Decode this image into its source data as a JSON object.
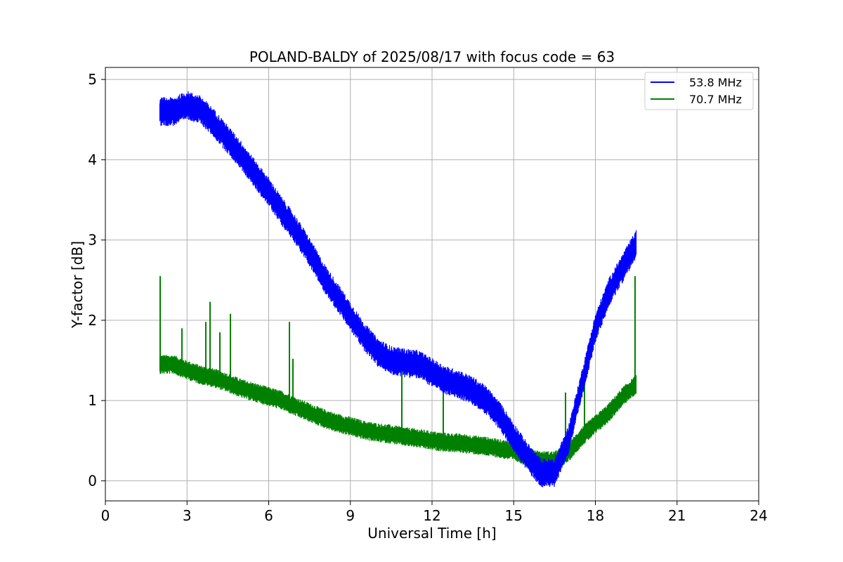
{
  "chart_data": {
    "type": "line",
    "title": "POLAND-BALDY of 2025/08/17 with focus code = 63",
    "xlabel": "Universal Time [h]",
    "ylabel": "Y-factor [dB]",
    "xlim": [
      0,
      24
    ],
    "ylim": [
      -0.25,
      5.15
    ],
    "xticks": [
      0,
      3,
      6,
      9,
      12,
      15,
      18,
      21,
      24
    ],
    "yticks": [
      0,
      1,
      2,
      3,
      4,
      5
    ],
    "grid": true,
    "legend_position": "top-right",
    "series": [
      {
        "name": "53.8 MHz",
        "color": "#0000ff",
        "noise_amplitude": 0.18,
        "x": [
          2.0,
          2.5,
          3.0,
          3.5,
          4.0,
          4.5,
          5.0,
          5.5,
          6.0,
          6.5,
          7.0,
          7.5,
          8.0,
          8.5,
          9.0,
          9.5,
          10.0,
          10.5,
          11.0,
          11.5,
          12.0,
          12.5,
          13.0,
          13.5,
          14.0,
          14.5,
          15.0,
          15.5,
          16.0,
          16.5,
          17.0,
          17.5,
          18.0,
          18.5,
          19.0,
          19.5
        ],
        "y": [
          4.6,
          4.6,
          4.68,
          4.62,
          4.45,
          4.25,
          4.05,
          3.82,
          3.6,
          3.35,
          3.12,
          2.85,
          2.55,
          2.3,
          2.05,
          1.8,
          1.6,
          1.5,
          1.47,
          1.45,
          1.35,
          1.25,
          1.2,
          1.12,
          1.0,
          0.8,
          0.55,
          0.3,
          0.1,
          0.1,
          0.5,
          1.2,
          1.9,
          2.35,
          2.65,
          2.95
        ]
      },
      {
        "name": "70.7 MHz",
        "color": "#008000",
        "noise_amplitude": 0.12,
        "x": [
          2.0,
          2.5,
          3.0,
          3.5,
          4.0,
          4.5,
          5.0,
          5.5,
          6.0,
          6.5,
          7.0,
          7.5,
          8.0,
          8.5,
          9.0,
          9.5,
          10.0,
          10.5,
          11.0,
          11.5,
          12.0,
          12.5,
          13.0,
          13.5,
          14.0,
          14.5,
          15.0,
          15.5,
          16.0,
          16.5,
          17.0,
          17.5,
          18.0,
          18.5,
          19.0,
          19.5
        ],
        "y": [
          1.45,
          1.45,
          1.38,
          1.32,
          1.28,
          1.22,
          1.15,
          1.1,
          1.05,
          1.0,
          0.92,
          0.85,
          0.78,
          0.72,
          0.68,
          0.63,
          0.6,
          0.58,
          0.55,
          0.53,
          0.5,
          0.48,
          0.47,
          0.45,
          0.43,
          0.4,
          0.37,
          0.3,
          0.25,
          0.25,
          0.35,
          0.55,
          0.7,
          0.85,
          1.05,
          1.2
        ],
        "spikes": [
          [
            2.02,
            2.55
          ],
          [
            2.8,
            1.9
          ],
          [
            3.7,
            1.98
          ],
          [
            3.85,
            2.23
          ],
          [
            4.2,
            1.85
          ],
          [
            4.6,
            2.08
          ],
          [
            6.75,
            1.98
          ],
          [
            6.9,
            1.52
          ],
          [
            10.9,
            1.37
          ],
          [
            12.4,
            1.22
          ],
          [
            16.9,
            1.1
          ],
          [
            17.6,
            1.35
          ],
          [
            19.45,
            2.55
          ]
        ]
      }
    ]
  }
}
